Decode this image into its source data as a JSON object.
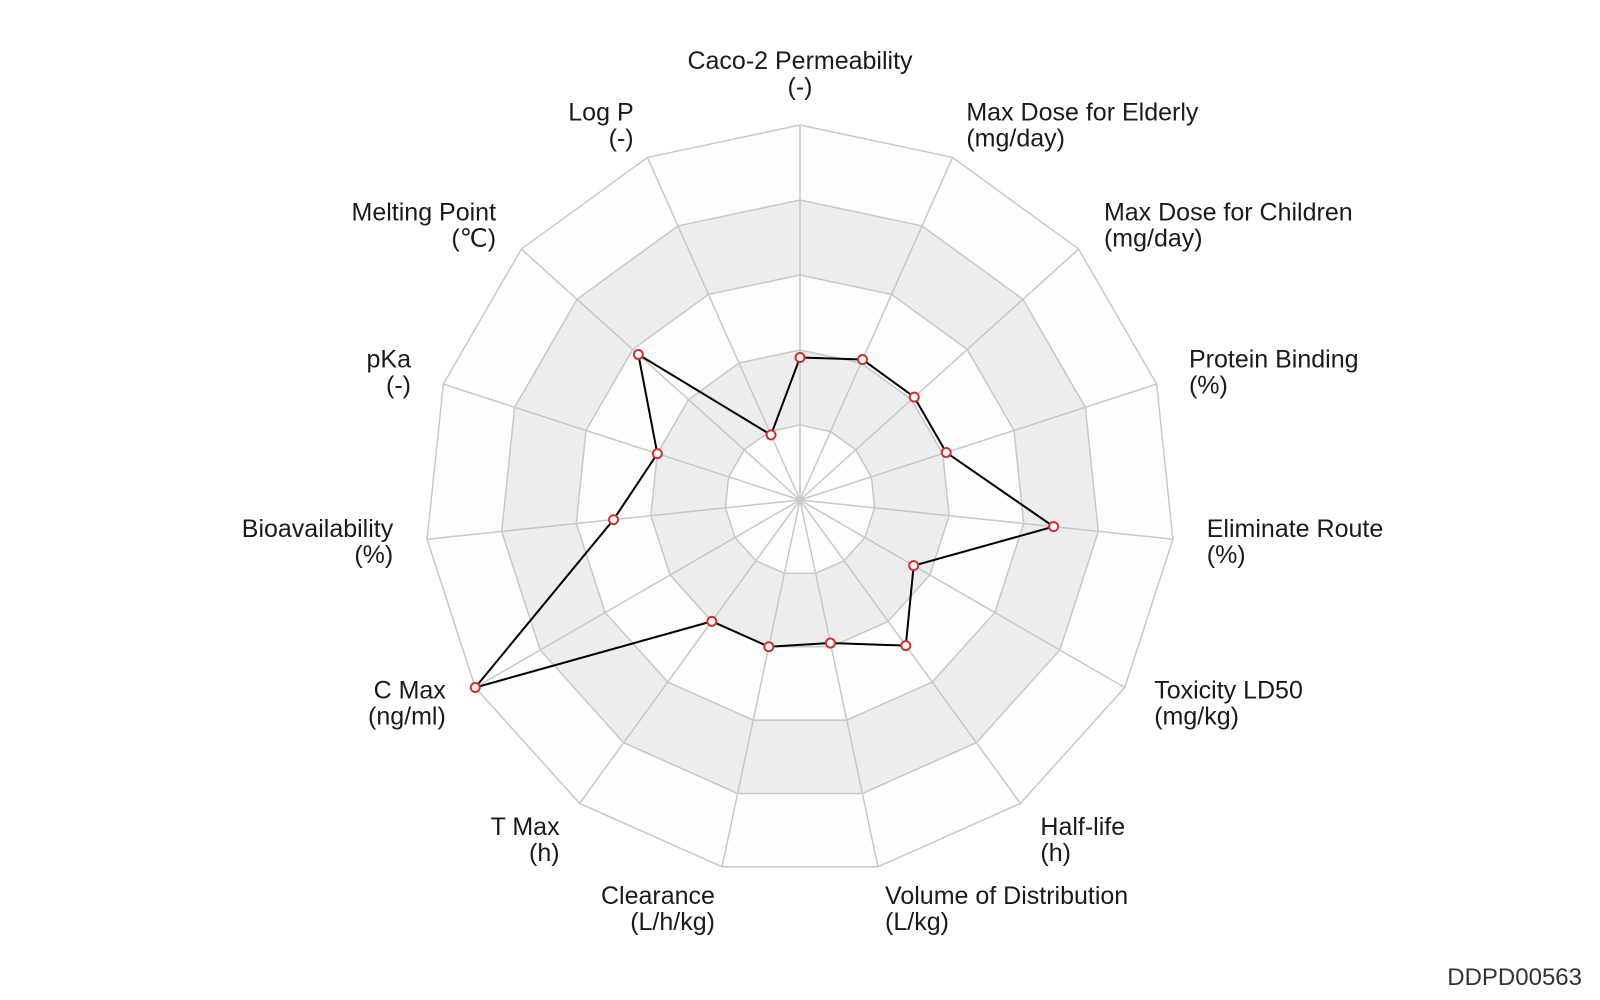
{
  "chart_data": {
    "type": "radar",
    "axes": [
      {
        "name": "Caco-2 Permeability",
        "unit": "(-)",
        "value": 0.38
      },
      {
        "name": "Max Dose for Elderly",
        "unit": "(mg/day)",
        "value": 0.41
      },
      {
        "name": "Max Dose for Children",
        "unit": "(mg/day)",
        "value": 0.41
      },
      {
        "name": "Protein Binding",
        "unit": "(%)",
        "value": 0.41
      },
      {
        "name": "Eliminate Route",
        "unit": "(%)",
        "value": 0.68
      },
      {
        "name": "Toxicity LD50",
        "unit": "(mg/kg)",
        "value": 0.35
      },
      {
        "name": "Half-life",
        "unit": "(h)",
        "value": 0.48
      },
      {
        "name": "Volume of Distribution",
        "unit": "(L/kg)",
        "value": 0.39
      },
      {
        "name": "Clearance",
        "unit": "(L/h/kg)",
        "value": 0.4
      },
      {
        "name": "T Max",
        "unit": "(h)",
        "value": 0.4
      },
      {
        "name": "C Max",
        "unit": "(ng/ml)",
        "value": 1.0
      },
      {
        "name": "Bioavailability",
        "unit": "(%)",
        "value": 0.5
      },
      {
        "name": "pKa",
        "unit": "(-)",
        "value": 0.4
      },
      {
        "name": "Melting Point",
        "unit": "(℃)",
        "value": 0.58
      },
      {
        "name": "Log P",
        "unit": "(-)",
        "value": 0.19
      }
    ],
    "range": [
      0,
      1
    ],
    "rings": 5,
    "ring_bands": [
      "#fdfdfd",
      "#ededed"
    ],
    "series_color": "#000000",
    "marker_color": "#d32f2f",
    "grid_color": "#c8c8c8"
  },
  "footer": {
    "id": "DDPD00563"
  }
}
